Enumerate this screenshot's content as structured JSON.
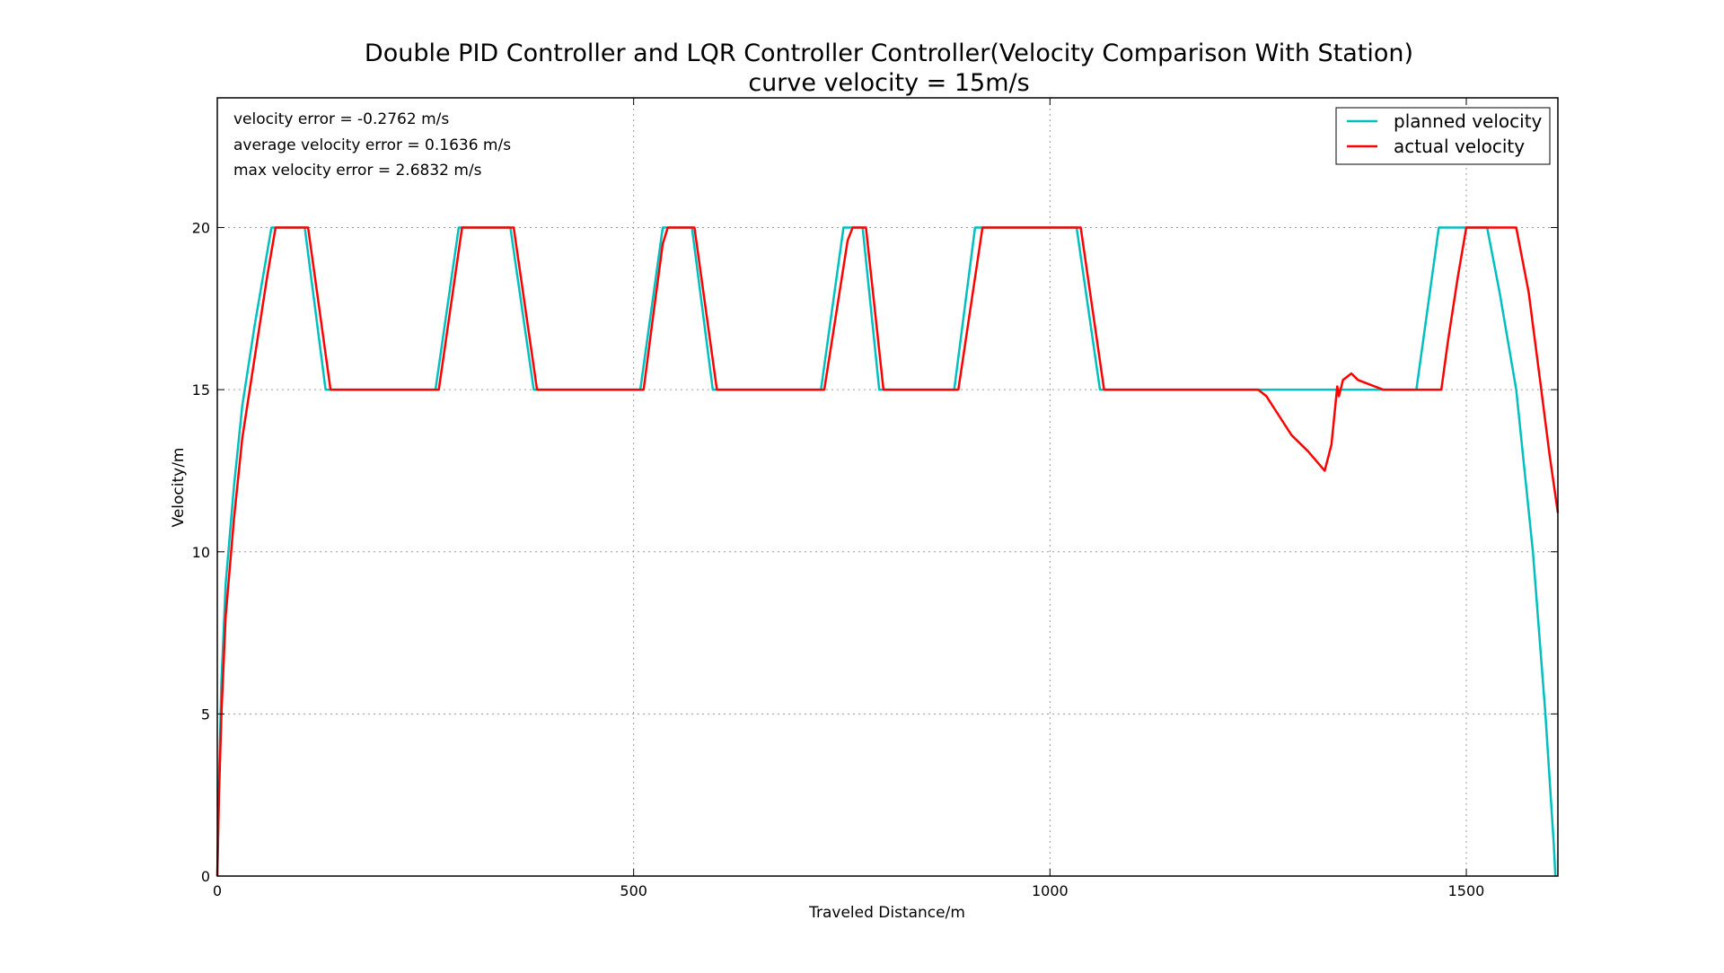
{
  "chart_data": {
    "type": "line",
    "title": "Double PID Controller and LQR Controller Controller(Velocity Comparison With Station)",
    "subtitle": "curve velocity = 15m/s",
    "xlabel": "Traveled Distance/m",
    "ylabel": "Velocity/m",
    "xlim": [
      0,
      1610
    ],
    "ylim": [
      0,
      24
    ],
    "xticks": [
      0,
      500,
      1000,
      1500
    ],
    "yticks": [
      0,
      5,
      10,
      15,
      20
    ],
    "grid": true,
    "legend_position": "top-right",
    "annotations": [
      "velocity error = -0.2762 m/s",
      "average velocity error = 0.1636 m/s",
      "max velocity error = 2.6832 m/s"
    ],
    "series": [
      {
        "name": "planned velocity",
        "color": "#00bfbf",
        "x": [
          0,
          2,
          5,
          10,
          20,
          30,
          45,
          65,
          105,
          130,
          262,
          290,
          352,
          380,
          508,
          535,
          570,
          595,
          725,
          752,
          775,
          795,
          885,
          910,
          1032,
          1060,
          1440,
          1467,
          1500,
          1525,
          1540,
          1560,
          1580,
          1595,
          1605,
          1607
        ],
        "y": [
          0,
          3,
          6,
          9,
          12,
          14.5,
          17,
          20,
          20,
          15,
          15,
          20,
          20,
          15,
          15,
          20,
          20,
          15,
          15,
          20,
          20,
          15,
          15,
          20,
          20,
          15,
          15,
          20,
          20,
          20,
          18,
          15,
          10,
          5,
          1,
          0
        ]
      },
      {
        "name": "actual velocity",
        "color": "#ff0000",
        "x": [
          0,
          2,
          5,
          10,
          20,
          30,
          45,
          60,
          70,
          109,
          136,
          266,
          294,
          356,
          384,
          512,
          522,
          535,
          541,
          573,
          600,
          729,
          757,
          763,
          779,
          800,
          890,
          919,
          1037,
          1065,
          1250,
          1260,
          1275,
          1290,
          1310,
          1330,
          1338,
          1345,
          1347,
          1352,
          1362,
          1370,
          1380,
          1400,
          1410,
          1470,
          1478,
          1490,
          1500,
          1505,
          1560,
          1575,
          1590,
          1600,
          1610
        ],
        "y": [
          0,
          2.5,
          5,
          8,
          11,
          13.5,
          16,
          18.5,
          20,
          20,
          15,
          15,
          20,
          20,
          15,
          15,
          17,
          19.5,
          20,
          20,
          15,
          15,
          19.6,
          20,
          20,
          15,
          15,
          20,
          20,
          15,
          15,
          14.8,
          14.2,
          13.6,
          13.1,
          12.5,
          13.3,
          15.1,
          14.8,
          15.3,
          15.5,
          15.3,
          15.2,
          15.0,
          15.0,
          15,
          16.5,
          18.5,
          20,
          20,
          20,
          18,
          15,
          13,
          11.2
        ]
      }
    ]
  }
}
